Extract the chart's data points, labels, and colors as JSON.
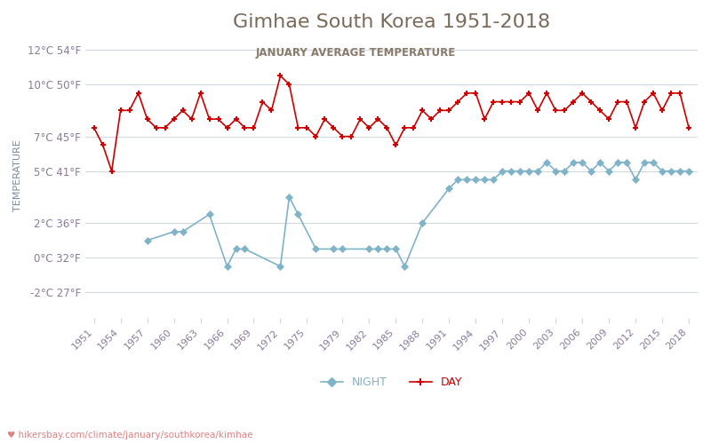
{
  "title": "Gimhae South Korea 1951-2018",
  "subtitle": "JANUARY AVERAGE TEMPERATURE",
  "xlabel_url": "hikersbay.com/climate/january/southkorea/kimhae",
  "ylabel": "TEMPERATURE",
  "years": [
    1951,
    1952,
    1953,
    1954,
    1955,
    1956,
    1957,
    1958,
    1959,
    1960,
    1961,
    1962,
    1963,
    1964,
    1965,
    1966,
    1967,
    1968,
    1969,
    1970,
    1971,
    1972,
    1973,
    1974,
    1975,
    1976,
    1977,
    1978,
    1979,
    1980,
    1981,
    1982,
    1983,
    1984,
    1985,
    1986,
    1987,
    1988,
    1989,
    1990,
    1991,
    1992,
    1993,
    1994,
    1995,
    1996,
    1997,
    1998,
    1999,
    2000,
    2001,
    2002,
    2003,
    2004,
    2005,
    2006,
    2007,
    2008,
    2009,
    2010,
    2011,
    2012,
    2013,
    2014,
    2015,
    2016,
    2017,
    2018
  ],
  "day_temps": [
    7.5,
    6.5,
    5.0,
    8.5,
    8.5,
    9.5,
    8.0,
    7.5,
    7.5,
    8.0,
    8.5,
    8.0,
    9.5,
    8.0,
    8.0,
    7.5,
    8.0,
    7.5,
    7.5,
    9.0,
    8.5,
    10.5,
    10.0,
    7.5,
    7.5,
    7.0,
    8.0,
    7.5,
    7.0,
    7.0,
    8.0,
    7.5,
    8.0,
    7.5,
    6.5,
    7.5,
    7.5,
    8.5,
    8.0,
    8.5,
    8.5,
    9.0,
    9.5,
    9.5,
    8.0,
    9.0,
    9.0,
    9.0,
    9.0,
    9.5,
    8.5,
    9.5,
    8.5,
    8.5,
    9.0,
    9.5,
    9.0,
    8.5,
    8.0,
    9.0,
    9.0,
    7.5,
    9.0,
    9.5,
    8.5,
    9.5,
    9.5,
    7.5
  ],
  "night_temps": [
    null,
    null,
    null,
    null,
    null,
    null,
    1.0,
    null,
    null,
    1.5,
    1.5,
    null,
    null,
    2.5,
    null,
    -0.5,
    0.5,
    0.5,
    null,
    null,
    null,
    -0.5,
    3.5,
    2.5,
    null,
    0.5,
    null,
    0.5,
    0.5,
    null,
    null,
    0.5,
    0.5,
    0.5,
    0.5,
    -0.5,
    null,
    2.0,
    null,
    null,
    4.0,
    4.5,
    4.5,
    4.5,
    4.5,
    4.5,
    5.0,
    5.0,
    5.0,
    5.0,
    5.0,
    5.5,
    5.0,
    5.0,
    5.5,
    5.5,
    5.0,
    5.5,
    5.0,
    5.5,
    5.5,
    4.5,
    5.5,
    5.5,
    5.0,
    5.0,
    5.0,
    5.0
  ],
  "yticks_c": [
    12,
    10,
    7,
    5,
    2,
    0,
    -2
  ],
  "yticks_f": [
    54,
    50,
    45,
    41,
    36,
    32,
    27
  ],
  "xtick_years": [
    1951,
    1954,
    1957,
    1960,
    1963,
    1966,
    1969,
    1972,
    1975,
    1979,
    1982,
    1985,
    1988,
    1991,
    1994,
    1997,
    2000,
    2003,
    2006,
    2009,
    2012,
    2015,
    2018
  ],
  "day_color": "#cc0000",
  "night_color": "#7fb3c8",
  "title_color": "#7a6a5a",
  "subtitle_color": "#8a7a6a",
  "ylabel_color": "#7a8a9a",
  "tick_color": "#8a7a9a",
  "grid_color": "#d0d8e0",
  "url_color": "#e08080",
  "legend_night_color": "#7fb3c8",
  "legend_day_color": "#cc0000",
  "bg_color": "#ffffff"
}
